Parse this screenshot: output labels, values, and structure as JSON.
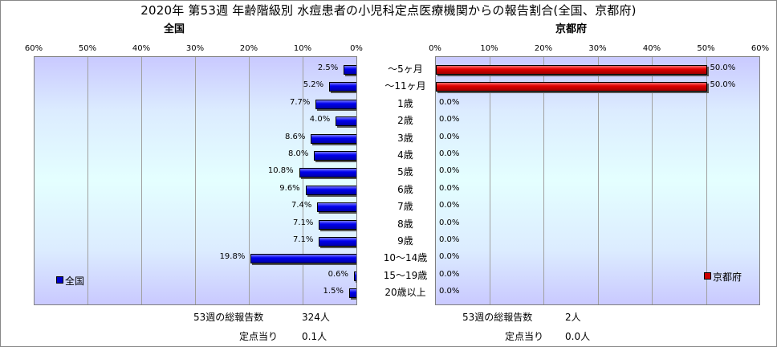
{
  "title": "2020年 第53週 年齢階級別 水痘患者の小児科定点医療機関からの報告割合(全国、京都府)",
  "categories": [
    "～5ヶ月",
    "～11ヶ月",
    "1歳",
    "2歳",
    "3歳",
    "4歳",
    "5歳",
    "6歳",
    "7歳",
    "8歳",
    "9歳",
    "10～14歳",
    "15～19歳",
    "20歳以上"
  ],
  "chart_data": [
    {
      "type": "bar",
      "orientation": "horizontal",
      "direction": "right-to-left",
      "title": "全国",
      "categories": [
        "～5ヶ月",
        "～11ヶ月",
        "1歳",
        "2歳",
        "3歳",
        "4歳",
        "5歳",
        "6歳",
        "7歳",
        "8歳",
        "9歳",
        "10～14歳",
        "15～19歳",
        "20歳以上"
      ],
      "series": [
        {
          "name": "全国",
          "values": [
            2.5,
            5.2,
            7.7,
            4.0,
            8.6,
            8.0,
            10.8,
            9.6,
            7.4,
            7.1,
            7.1,
            19.8,
            0.6,
            1.5
          ]
        }
      ],
      "value_labels": [
        "2.5%",
        "5.2%",
        "7.7%",
        "4.0%",
        "8.6%",
        "8.0%",
        "10.8%",
        "9.6%",
        "7.4%",
        "7.1%",
        "7.1%",
        "19.8%",
        "0.6%",
        "1.5%"
      ],
      "xlim": [
        0,
        60
      ],
      "x_ticks": [
        "60%",
        "50%",
        "40%",
        "30%",
        "20%",
        "10%",
        "0%"
      ],
      "grid": true,
      "legend": "left",
      "color": "#0000cc"
    },
    {
      "type": "bar",
      "orientation": "horizontal",
      "direction": "left-to-right",
      "title": "京都府",
      "categories": [
        "～5ヶ月",
        "～11ヶ月",
        "1歳",
        "2歳",
        "3歳",
        "4歳",
        "5歳",
        "6歳",
        "7歳",
        "8歳",
        "9歳",
        "10～14歳",
        "15～19歳",
        "20歳以上"
      ],
      "series": [
        {
          "name": "京都府",
          "values": [
            50.0,
            50.0,
            0.0,
            0.0,
            0.0,
            0.0,
            0.0,
            0.0,
            0.0,
            0.0,
            0.0,
            0.0,
            0.0,
            0.0
          ]
        }
      ],
      "value_labels": [
        "50.0%",
        "50.0%",
        "0.0%",
        "0.0%",
        "0.0%",
        "0.0%",
        "0.0%",
        "0.0%",
        "0.0%",
        "0.0%",
        "0.0%",
        "0.0%",
        "0.0%",
        "0.0%"
      ],
      "xlim": [
        0,
        60
      ],
      "x_ticks": [
        "0%",
        "10%",
        "20%",
        "30%",
        "40%",
        "50%",
        "60%"
      ],
      "grid": true,
      "legend": "right",
      "color": "#cc0000"
    }
  ],
  "footer": {
    "left": {
      "total_label": "53週の総報告数",
      "total_value": "324人",
      "per_label": "定点当り",
      "per_value": "0.1人"
    },
    "right": {
      "total_label": "53週の総報告数",
      "total_value": "2人",
      "per_label": "定点当り",
      "per_value": "0.0人"
    }
  }
}
